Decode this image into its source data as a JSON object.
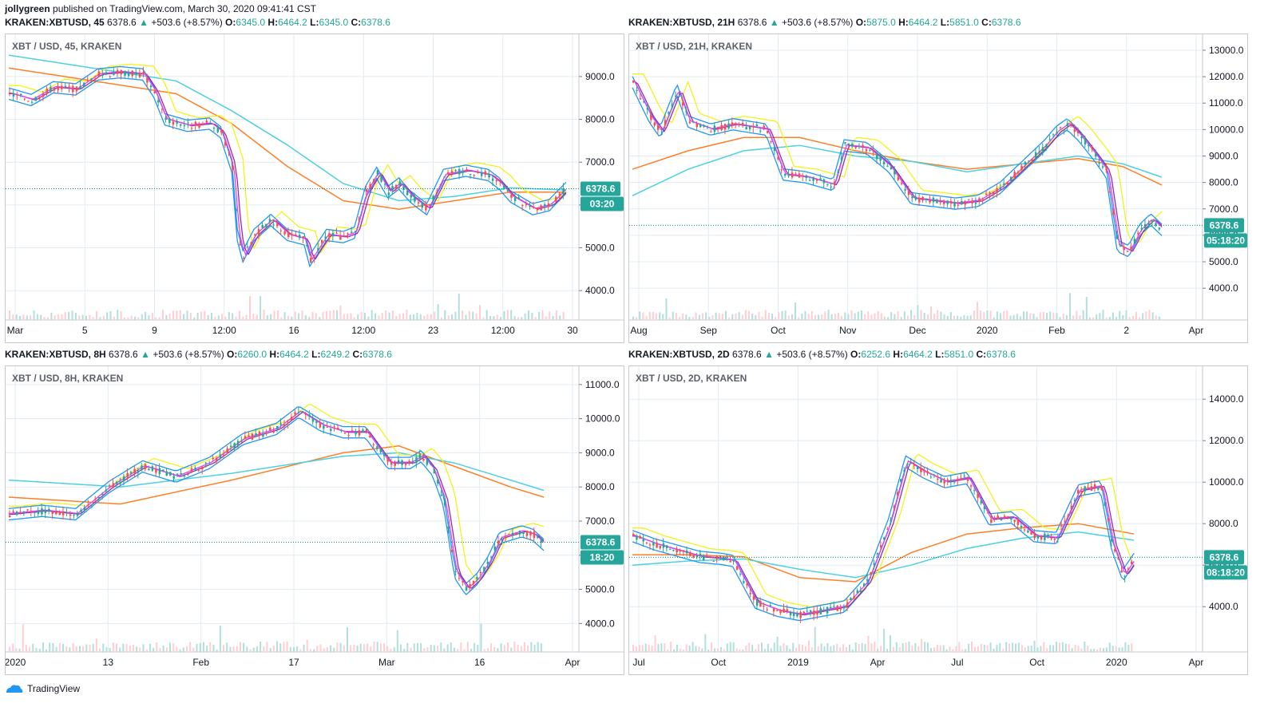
{
  "header": {
    "user": "jollygreen",
    "published": "published on TradingView.com, March 30, 2020 09:41:41 CST"
  },
  "brand": {
    "logo_text": "TradingView"
  },
  "colors": {
    "up": "#26a69a",
    "down": "#ef5350",
    "orange": "#ff7f27",
    "cyan": "#4dd0e1",
    "yellow": "#f2f21a",
    "blue": "#2196f3",
    "purple": "#9c27b0",
    "pink": "#e040fb",
    "grid": "#e1ecf2",
    "dotted": "#008b8b"
  },
  "panels": [
    {
      "symbol": "KRAKEN:XBTUSD, 45",
      "last": "6378.6",
      "change": "+503.6 (+8.57%)",
      "o": "6345.0",
      "h": "6464.2",
      "l": "6345.0",
      "c": "6378.6",
      "watermark": "XBT / USD, 45, KRAKEN",
      "price_tag": "6378.6",
      "timer_tag": "03:20"
    },
    {
      "symbol": "KRAKEN:XBTUSD, 21H",
      "last": "6378.6",
      "change": "+503.6 (+8.57%)",
      "o": "5875.0",
      "h": "6464.2",
      "l": "5851.0",
      "c": "6378.6",
      "watermark": "XBT / USD, 21H, KRAKEN",
      "price_tag": "6378.6",
      "timer_tag": "05:18:20"
    },
    {
      "symbol": "KRAKEN:XBTUSD, 8H",
      "last": "6378.6",
      "change": "+503.6 (+8.57%)",
      "o": "6260.0",
      "h": "6464.2",
      "l": "6249.2",
      "c": "6378.6",
      "watermark": "XBT / USD, 8H, KRAKEN",
      "price_tag": "6378.6",
      "timer_tag": "18:20"
    },
    {
      "symbol": "KRAKEN:XBTUSD, 2D",
      "last": "6378.6",
      "change": "+503.6 (+8.57%)",
      "o": "6252.6",
      "h": "6464.2",
      "l": "5851.0",
      "c": "6378.6",
      "watermark": "XBT / USD, 2D, KRAKEN",
      "price_tag": "6378.6",
      "timer_tag": "08:18:20"
    }
  ],
  "chart_data": [
    {
      "type": "line",
      "title": "XBT / USD, 45, KRAKEN",
      "ylim": [
        3500,
        9800
      ],
      "yticks": [
        "4000.0",
        "5000.0",
        "6000.0",
        "7000.0",
        "8000.0",
        "9000.0"
      ],
      "xticks": [
        "Mar",
        "5",
        "9",
        "12:00",
        "16",
        "12:00",
        "23",
        "12:00",
        "30"
      ],
      "last_price": 6378.6,
      "price": [
        [
          0,
          8600
        ],
        [
          0.04,
          8450
        ],
        [
          0.08,
          8750
        ],
        [
          0.12,
          8700
        ],
        [
          0.16,
          9050
        ],
        [
          0.2,
          9100
        ],
        [
          0.24,
          9050
        ],
        [
          0.26,
          8650
        ],
        [
          0.28,
          8000
        ],
        [
          0.32,
          7850
        ],
        [
          0.36,
          7900
        ],
        [
          0.38,
          7700
        ],
        [
          0.4,
          6900
        ],
        [
          0.41,
          5300
        ],
        [
          0.42,
          4800
        ],
        [
          0.44,
          5300
        ],
        [
          0.47,
          5650
        ],
        [
          0.5,
          5300
        ],
        [
          0.53,
          5200
        ],
        [
          0.54,
          4700
        ],
        [
          0.57,
          5300
        ],
        [
          0.6,
          5250
        ],
        [
          0.62,
          5350
        ],
        [
          0.64,
          6300
        ],
        [
          0.66,
          6750
        ],
        [
          0.68,
          6300
        ],
        [
          0.7,
          6500
        ],
        [
          0.72,
          6200
        ],
        [
          0.75,
          5900
        ],
        [
          0.78,
          6700
        ],
        [
          0.82,
          6800
        ],
        [
          0.86,
          6700
        ],
        [
          0.88,
          6500
        ],
        [
          0.9,
          6200
        ],
        [
          0.94,
          5900
        ],
        [
          0.97,
          6000
        ],
        [
          1,
          6400
        ]
      ],
      "series": [
        {
          "name": "",
          "color": "orange",
          "values": [
            [
              0,
              9200
            ],
            [
              0.15,
              8900
            ],
            [
              0.3,
              8600
            ],
            [
              0.4,
              7900
            ],
            [
              0.5,
              6900
            ],
            [
              0.6,
              6100
            ],
            [
              0.7,
              5900
            ],
            [
              0.8,
              6100
            ],
            [
              0.9,
              6300
            ],
            [
              1,
              6300
            ]
          ]
        },
        {
          "name": "",
          "color": "cyan",
          "values": [
            [
              0,
              9500
            ],
            [
              0.15,
              9200
            ],
            [
              0.3,
              8900
            ],
            [
              0.4,
              8200
            ],
            [
              0.5,
              7400
            ],
            [
              0.6,
              6500
            ],
            [
              0.7,
              6100
            ],
            [
              0.8,
              6200
            ],
            [
              0.9,
              6400
            ],
            [
              1,
              6350
            ]
          ]
        }
      ]
    },
    {
      "type": "line",
      "title": "XBT / USD, 21H, KRAKEN",
      "ylim": [
        3100,
        13300
      ],
      "yticks": [
        "4000.0",
        "5000.0",
        "6000.0",
        "7000.0",
        "8000.0",
        "9000.0",
        "10000.0",
        "11000.0",
        "12000.0",
        "13000.0"
      ],
      "xticks": [
        "Aug",
        "Sep",
        "Oct",
        "Nov",
        "Dec",
        "2020",
        "Feb",
        "2",
        "Apr"
      ],
      "last_price": 6378.6,
      "price": [
        [
          0,
          11800
        ],
        [
          0.03,
          10500
        ],
        [
          0.05,
          9900
        ],
        [
          0.08,
          11500
        ],
        [
          0.1,
          10300
        ],
        [
          0.14,
          10000
        ],
        [
          0.18,
          10200
        ],
        [
          0.24,
          10000
        ],
        [
          0.27,
          8300
        ],
        [
          0.31,
          8200
        ],
        [
          0.36,
          7900
        ],
        [
          0.38,
          9400
        ],
        [
          0.42,
          9300
        ],
        [
          0.46,
          8600
        ],
        [
          0.5,
          7400
        ],
        [
          0.54,
          7300
        ],
        [
          0.58,
          7200
        ],
        [
          0.62,
          7300
        ],
        [
          0.66,
          7800
        ],
        [
          0.7,
          8600
        ],
        [
          0.74,
          9400
        ],
        [
          0.76,
          9900
        ],
        [
          0.78,
          10200
        ],
        [
          0.8,
          9800
        ],
        [
          0.83,
          9000
        ],
        [
          0.85,
          8400
        ],
        [
          0.87,
          5600
        ],
        [
          0.89,
          5400
        ],
        [
          0.91,
          6200
        ],
        [
          0.93,
          6600
        ],
        [
          0.95,
          6200
        ]
      ],
      "series": [
        {
          "name": "",
          "color": "orange",
          "values": [
            [
              0,
              8500
            ],
            [
              0.1,
              9200
            ],
            [
              0.2,
              9700
            ],
            [
              0.3,
              9700
            ],
            [
              0.4,
              9200
            ],
            [
              0.5,
              8800
            ],
            [
              0.6,
              8500
            ],
            [
              0.7,
              8700
            ],
            [
              0.8,
              8900
            ],
            [
              0.88,
              8600
            ],
            [
              0.95,
              7900
            ]
          ]
        },
        {
          "name": "",
          "color": "cyan",
          "values": [
            [
              0,
              7500
            ],
            [
              0.1,
              8500
            ],
            [
              0.2,
              9200
            ],
            [
              0.3,
              9400
            ],
            [
              0.4,
              9000
            ],
            [
              0.5,
              8800
            ],
            [
              0.6,
              8400
            ],
            [
              0.7,
              8700
            ],
            [
              0.8,
              9000
            ],
            [
              0.88,
              8700
            ],
            [
              0.95,
              8200
            ]
          ]
        }
      ]
    },
    {
      "type": "line",
      "title": "XBT / USD, 8H, KRAKEN",
      "ylim": [
        3400,
        11300
      ],
      "yticks": [
        "4000.0",
        "5000.0",
        "6000.0",
        "7000.0",
        "8000.0",
        "9000.0",
        "10000.0",
        "11000.0"
      ],
      "xticks": [
        "2020",
        "13",
        "Feb",
        "17",
        "Mar",
        "16",
        "Apr"
      ],
      "last_price": 6378.6,
      "price": [
        [
          0,
          7200
        ],
        [
          0.06,
          7300
        ],
        [
          0.12,
          7200
        ],
        [
          0.18,
          8000
        ],
        [
          0.24,
          8600
        ],
        [
          0.3,
          8300
        ],
        [
          0.36,
          8700
        ],
        [
          0.42,
          9400
        ],
        [
          0.48,
          9700
        ],
        [
          0.52,
          10200
        ],
        [
          0.56,
          9800
        ],
        [
          0.6,
          9600
        ],
        [
          0.64,
          9600
        ],
        [
          0.68,
          8700
        ],
        [
          0.72,
          8700
        ],
        [
          0.74,
          8900
        ],
        [
          0.76,
          8500
        ],
        [
          0.78,
          7600
        ],
        [
          0.8,
          5500
        ],
        [
          0.82,
          5000
        ],
        [
          0.84,
          5300
        ],
        [
          0.86,
          5800
        ],
        [
          0.88,
          6500
        ],
        [
          0.92,
          6700
        ],
        [
          0.94,
          6600
        ],
        [
          0.96,
          6300
        ]
      ],
      "series": [
        {
          "name": "",
          "color": "orange",
          "values": [
            [
              0,
              7700
            ],
            [
              0.2,
              7500
            ],
            [
              0.4,
              8200
            ],
            [
              0.6,
              9000
            ],
            [
              0.7,
              9200
            ],
            [
              0.8,
              8600
            ],
            [
              0.9,
              8000
            ],
            [
              0.96,
              7700
            ]
          ]
        },
        {
          "name": "",
          "color": "cyan",
          "values": [
            [
              0,
              8200
            ],
            [
              0.2,
              8000
            ],
            [
              0.4,
              8400
            ],
            [
              0.6,
              8900
            ],
            [
              0.7,
              9000
            ],
            [
              0.8,
              8700
            ],
            [
              0.9,
              8200
            ],
            [
              0.96,
              7900
            ]
          ]
        }
      ]
    },
    {
      "type": "line",
      "title": "XBT / USD, 2D, KRAKEN",
      "ylim": [
        2200,
        15200
      ],
      "yticks": [
        "4000.0",
        "6000.0",
        "8000.0",
        "10000.0",
        "12000.0",
        "14000.0"
      ],
      "xticks": [
        "Jul",
        "Oct",
        "2019",
        "Apr",
        "Jul",
        "Oct",
        "2020",
        "Apr"
      ],
      "last_price": 6378.6,
      "price": [
        [
          0,
          7400
        ],
        [
          0.04,
          7000
        ],
        [
          0.08,
          6700
        ],
        [
          0.12,
          6400
        ],
        [
          0.16,
          6300
        ],
        [
          0.18,
          6200
        ],
        [
          0.22,
          4200
        ],
        [
          0.26,
          3800
        ],
        [
          0.3,
          3600
        ],
        [
          0.34,
          3800
        ],
        [
          0.38,
          4000
        ],
        [
          0.42,
          5200
        ],
        [
          0.46,
          8000
        ],
        [
          0.49,
          11000
        ],
        [
          0.52,
          10500
        ],
        [
          0.56,
          10000
        ],
        [
          0.6,
          10200
        ],
        [
          0.64,
          8200
        ],
        [
          0.68,
          8300
        ],
        [
          0.72,
          7400
        ],
        [
          0.76,
          7300
        ],
        [
          0.8,
          9600
        ],
        [
          0.84,
          9800
        ],
        [
          0.86,
          7000
        ],
        [
          0.88,
          5500
        ],
        [
          0.9,
          6300
        ]
      ],
      "series": [
        {
          "name": "",
          "color": "orange",
          "values": [
            [
              0,
              6500
            ],
            [
              0.1,
              6500
            ],
            [
              0.2,
              6400
            ],
            [
              0.3,
              5400
            ],
            [
              0.4,
              5200
            ],
            [
              0.5,
              6600
            ],
            [
              0.6,
              7500
            ],
            [
              0.7,
              7800
            ],
            [
              0.8,
              8000
            ],
            [
              0.9,
              7500
            ]
          ]
        },
        {
          "name": "",
          "color": "cyan",
          "values": [
            [
              0,
              6000
            ],
            [
              0.1,
              6200
            ],
            [
              0.2,
              6300
            ],
            [
              0.3,
              5800
            ],
            [
              0.4,
              5400
            ],
            [
              0.5,
              6000
            ],
            [
              0.6,
              6800
            ],
            [
              0.7,
              7300
            ],
            [
              0.8,
              7600
            ],
            [
              0.9,
              7200
            ]
          ]
        }
      ]
    }
  ]
}
